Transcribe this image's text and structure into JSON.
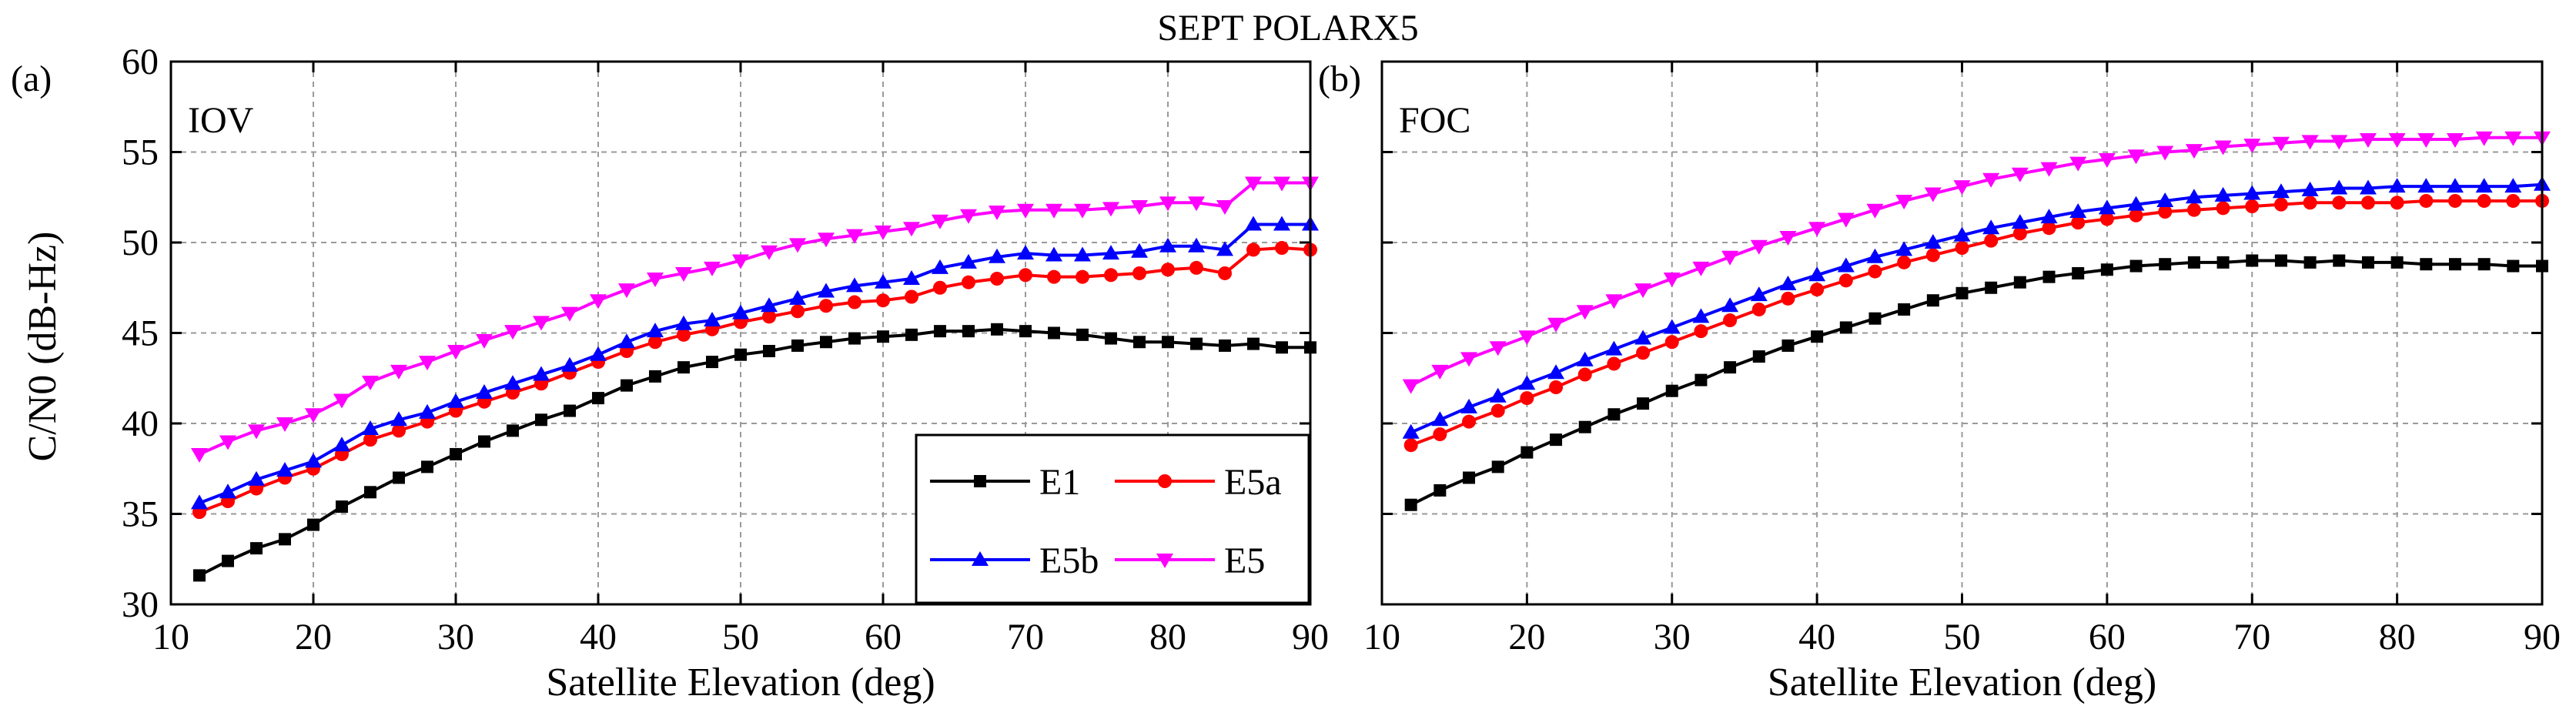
{
  "title": "SEPT POLARX5",
  "ylabel": "C/N0 (dB-Hz)",
  "colors": {
    "E1": "#000000",
    "E5a": "#ff0000",
    "E5b": "#0000ff",
    "E5": "#ff00ff"
  },
  "chart_data": [
    {
      "type": "line",
      "panel_label": "(a)",
      "tag": "IOV",
      "xlabel": "Satellite Elevation (deg)",
      "ylabel": "C/N0 (dB-Hz)",
      "xlim": [
        10,
        90
      ],
      "ylim": [
        30,
        60
      ],
      "xticks": [
        10,
        20,
        30,
        40,
        50,
        60,
        70,
        80,
        90
      ],
      "yticks": [
        30,
        35,
        40,
        45,
        50,
        55,
        60
      ],
      "grid": true,
      "legend_position": "bottom-right",
      "legend": [
        "E1",
        "E5a",
        "E5b",
        "E5"
      ],
      "x": [
        12,
        14,
        16,
        18,
        20,
        22,
        24,
        26,
        28,
        30,
        32,
        34,
        36,
        38,
        40,
        42,
        44,
        46,
        48,
        50,
        52,
        54,
        56,
        58,
        60,
        62,
        64,
        66,
        68,
        70,
        72,
        74,
        76,
        78,
        80,
        82,
        84,
        86,
        88,
        90
      ],
      "series": [
        {
          "name": "E1",
          "marker": "square",
          "values": [
            31.6,
            32.4,
            33.1,
            33.6,
            34.4,
            35.4,
            36.2,
            37.0,
            37.6,
            38.3,
            39.0,
            39.6,
            40.2,
            40.7,
            41.4,
            42.1,
            42.6,
            43.1,
            43.4,
            43.8,
            44.0,
            44.3,
            44.5,
            44.7,
            44.8,
            44.9,
            45.1,
            45.1,
            45.2,
            45.1,
            45.0,
            44.9,
            44.7,
            44.5,
            44.5,
            44.4,
            44.3,
            44.4,
            44.2,
            44.2
          ]
        },
        {
          "name": "E5a",
          "marker": "circle",
          "values": [
            35.1,
            35.7,
            36.4,
            37.0,
            37.5,
            38.3,
            39.1,
            39.6,
            40.1,
            40.7,
            41.2,
            41.7,
            42.2,
            42.8,
            43.4,
            44.0,
            44.5,
            44.9,
            45.2,
            45.6,
            45.9,
            46.2,
            46.5,
            46.7,
            46.8,
            47.0,
            47.5,
            47.8,
            48.0,
            48.2,
            48.1,
            48.1,
            48.2,
            48.3,
            48.5,
            48.6,
            48.3,
            49.6,
            49.7,
            49.6
          ]
        },
        {
          "name": "E5b",
          "marker": "triangle-up",
          "values": [
            35.6,
            36.2,
            36.9,
            37.4,
            37.9,
            38.8,
            39.7,
            40.2,
            40.6,
            41.2,
            41.7,
            42.2,
            42.7,
            43.2,
            43.8,
            44.5,
            45.1,
            45.5,
            45.7,
            46.1,
            46.5,
            46.9,
            47.3,
            47.6,
            47.8,
            48.0,
            48.6,
            48.9,
            49.2,
            49.4,
            49.3,
            49.3,
            49.4,
            49.5,
            49.8,
            49.8,
            49.6,
            51.0,
            51.0,
            51.0
          ]
        },
        {
          "name": "E5",
          "marker": "triangle-down",
          "values": [
            38.3,
            39.0,
            39.6,
            40.0,
            40.5,
            41.3,
            42.3,
            42.9,
            43.4,
            44.0,
            44.6,
            45.1,
            45.6,
            46.1,
            46.8,
            47.4,
            48.0,
            48.3,
            48.6,
            49.0,
            49.5,
            49.9,
            50.2,
            50.4,
            50.6,
            50.8,
            51.2,
            51.5,
            51.7,
            51.8,
            51.8,
            51.8,
            51.9,
            52.0,
            52.2,
            52.2,
            52.0,
            53.3,
            53.3,
            53.3
          ]
        }
      ]
    },
    {
      "type": "line",
      "panel_label": "(b)",
      "tag": "FOC",
      "xlabel": "Satellite Elevation (deg)",
      "xlim": [
        10,
        90
      ],
      "ylim": [
        30,
        60
      ],
      "xticks": [
        10,
        20,
        30,
        40,
        50,
        60,
        70,
        80,
        90
      ],
      "yticks": [
        30,
        35,
        40,
        45,
        50,
        55,
        60
      ],
      "grid": true,
      "x": [
        12,
        14,
        16,
        18,
        20,
        22,
        24,
        26,
        28,
        30,
        32,
        34,
        36,
        38,
        40,
        42,
        44,
        46,
        48,
        50,
        52,
        54,
        56,
        58,
        60,
        62,
        64,
        66,
        68,
        70,
        72,
        74,
        76,
        78,
        80,
        82,
        84,
        86,
        88,
        90
      ],
      "series": [
        {
          "name": "E1",
          "marker": "square",
          "values": [
            35.5,
            36.3,
            37.0,
            37.6,
            38.4,
            39.1,
            39.8,
            40.5,
            41.1,
            41.8,
            42.4,
            43.1,
            43.7,
            44.3,
            44.8,
            45.3,
            45.8,
            46.3,
            46.8,
            47.2,
            47.5,
            47.8,
            48.1,
            48.3,
            48.5,
            48.7,
            48.8,
            48.9,
            48.9,
            49.0,
            49.0,
            48.9,
            49.0,
            48.9,
            48.9,
            48.8,
            48.8,
            48.8,
            48.7,
            48.7
          ]
        },
        {
          "name": "E5a",
          "marker": "circle",
          "values": [
            38.8,
            39.4,
            40.1,
            40.7,
            41.4,
            42.0,
            42.7,
            43.3,
            43.9,
            44.5,
            45.1,
            45.7,
            46.3,
            46.9,
            47.4,
            47.9,
            48.4,
            48.9,
            49.3,
            49.7,
            50.1,
            50.5,
            50.8,
            51.1,
            51.3,
            51.5,
            51.7,
            51.8,
            51.9,
            52.0,
            52.1,
            52.2,
            52.2,
            52.2,
            52.2,
            52.3,
            52.3,
            52.3,
            52.3,
            52.3
          ]
        },
        {
          "name": "E5b",
          "marker": "triangle-up",
          "values": [
            39.5,
            40.2,
            40.9,
            41.5,
            42.2,
            42.8,
            43.5,
            44.1,
            44.7,
            45.3,
            45.9,
            46.5,
            47.1,
            47.7,
            48.2,
            48.7,
            49.2,
            49.6,
            50.0,
            50.4,
            50.8,
            51.1,
            51.4,
            51.7,
            51.9,
            52.1,
            52.3,
            52.5,
            52.6,
            52.7,
            52.8,
            52.9,
            53.0,
            53.0,
            53.1,
            53.1,
            53.1,
            53.1,
            53.1,
            53.2
          ]
        },
        {
          "name": "E5",
          "marker": "triangle-down",
          "values": [
            42.1,
            42.9,
            43.6,
            44.2,
            44.8,
            45.5,
            46.2,
            46.8,
            47.4,
            48.0,
            48.6,
            49.2,
            49.8,
            50.3,
            50.8,
            51.3,
            51.8,
            52.3,
            52.7,
            53.1,
            53.5,
            53.8,
            54.1,
            54.4,
            54.6,
            54.8,
            55.0,
            55.1,
            55.3,
            55.4,
            55.5,
            55.6,
            55.6,
            55.7,
            55.7,
            55.7,
            55.7,
            55.8,
            55.8,
            55.8
          ]
        }
      ]
    }
  ]
}
